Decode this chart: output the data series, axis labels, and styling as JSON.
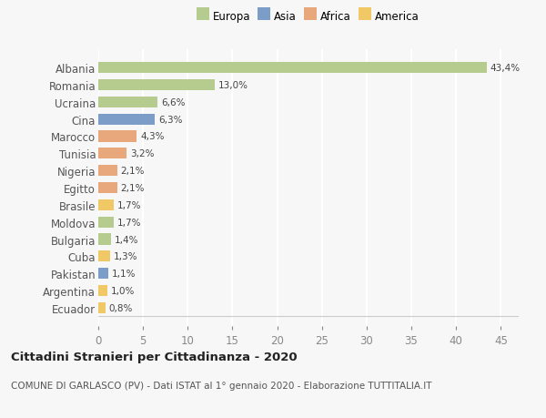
{
  "countries": [
    "Albania",
    "Romania",
    "Ucraina",
    "Cina",
    "Marocco",
    "Tunisia",
    "Nigeria",
    "Egitto",
    "Brasile",
    "Moldova",
    "Bulgaria",
    "Cuba",
    "Pakistan",
    "Argentina",
    "Ecuador"
  ],
  "values": [
    43.4,
    13.0,
    6.6,
    6.3,
    4.3,
    3.2,
    2.1,
    2.1,
    1.7,
    1.7,
    1.4,
    1.3,
    1.1,
    1.0,
    0.8
  ],
  "labels": [
    "43,4%",
    "13,0%",
    "6,6%",
    "6,3%",
    "4,3%",
    "3,2%",
    "2,1%",
    "2,1%",
    "1,7%",
    "1,7%",
    "1,4%",
    "1,3%",
    "1,1%",
    "1,0%",
    "0,8%"
  ],
  "colors": [
    "#b5cc8e",
    "#b5cc8e",
    "#b5cc8e",
    "#7b9dc8",
    "#e8a87c",
    "#e8a87c",
    "#e8a87c",
    "#e8a87c",
    "#f0c866",
    "#b5cc8e",
    "#b5cc8e",
    "#f0c866",
    "#7b9dc8",
    "#f0c866",
    "#f0c866"
  ],
  "legend_labels": [
    "Europa",
    "Asia",
    "Africa",
    "America"
  ],
  "legend_colors": [
    "#b5cc8e",
    "#7b9dc8",
    "#e8a87c",
    "#f0c866"
  ],
  "title": "Cittadini Stranieri per Cittadinanza - 2020",
  "subtitle": "COMUNE DI GARLASCO (PV) - Dati ISTAT al 1° gennaio 2020 - Elaborazione TUTTITALIA.IT",
  "xlim": [
    0,
    47
  ],
  "xticks": [
    0,
    5,
    10,
    15,
    20,
    25,
    30,
    35,
    40,
    45
  ],
  "background_color": "#f7f7f7",
  "grid_color": "#ffffff"
}
